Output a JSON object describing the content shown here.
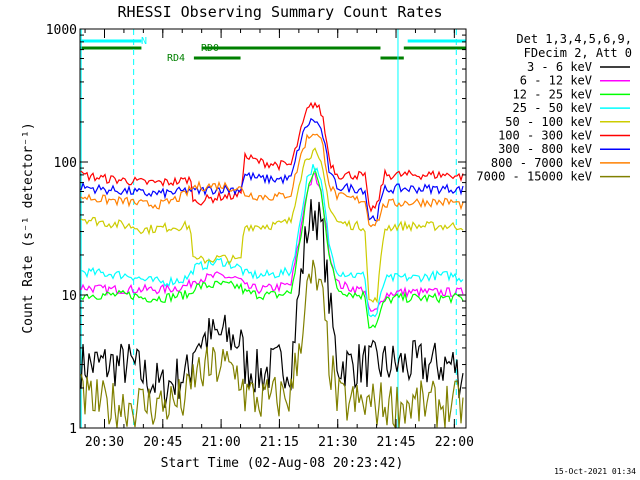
{
  "chart_data": {
    "type": "line",
    "title": "RHESSI Observing Summary Count Rates",
    "xlabel": "Start Time (02-Aug-08 20:23:42)",
    "ylabel": "Count Rate (s⁻¹ detector⁻¹)",
    "ylog": true,
    "ylim": [
      1,
      1000
    ],
    "xlim": [
      "20:23:42",
      "22:03:00"
    ],
    "x_ticks": [
      "20:30",
      "20:45",
      "21:00",
      "21:15",
      "21:30",
      "21:45",
      "22:00"
    ],
    "y_ticks": [
      "1",
      "10",
      "100",
      "1000"
    ],
    "legend_header": [
      "Det 1,3,4,5,6,9,",
      "FDecim 2, Att 0"
    ],
    "legend_position": "right",
    "footer": "15-Oct-2021 01:34",
    "flags": [
      {
        "label": "N",
        "color": "#00ffff",
        "intervals": [
          [
            "20:23:42",
            "20:39:30"
          ],
          [
            "21:48:00",
            "22:03:00"
          ]
        ]
      },
      {
        "label": "RD0",
        "color": "#008000",
        "intervals": [
          [
            "20:23:42",
            "20:39:30"
          ],
          [
            "20:55:00",
            "21:41:00"
          ],
          [
            "21:47:00",
            "22:03:00"
          ]
        ]
      },
      {
        "label": "RD4",
        "color": "#008000",
        "intervals": [
          [
            "20:53:00",
            "21:05:00"
          ],
          [
            "21:41:00",
            "21:47:00"
          ]
        ]
      }
    ],
    "vlines": [
      {
        "time": "20:24:00",
        "color": "#00ffff",
        "style": "solid"
      },
      {
        "time": "20:37:30",
        "color": "#00ffff",
        "style": "dashed"
      },
      {
        "time": "21:45:30",
        "color": "#00ffff",
        "style": "solid"
      },
      {
        "time": "22:00:30",
        "color": "#00ffff",
        "style": "dashed"
      }
    ],
    "x": [
      "20:24",
      "20:30",
      "20:37",
      "20:40",
      "20:45",
      "20:50",
      "20:52",
      "20:53",
      "21:00",
      "21:05",
      "21:06",
      "21:10",
      "21:15",
      "21:18",
      "21:20",
      "21:22",
      "21:24",
      "21:26",
      "21:28",
      "21:30",
      "21:35",
      "21:37",
      "21:38",
      "21:40",
      "21:42",
      "21:45",
      "21:50",
      "21:55",
      "22:00",
      "22:01"
    ],
    "series": [
      {
        "name": "3 - 6 keV",
        "color": "#000000",
        "values": [
          3,
          3,
          3,
          2.5,
          2,
          2.5,
          2.5,
          4.5,
          5,
          4.5,
          3,
          2.5,
          3,
          3,
          10,
          30,
          45,
          30,
          8,
          3,
          3,
          3,
          3,
          3,
          3,
          3,
          3,
          3,
          3,
          2.5
        ]
      },
      {
        "name": "6 - 12 keV",
        "color": "#ff00ff",
        "values": [
          11.5,
          11,
          11,
          11,
          11,
          11.5,
          12,
          13,
          14,
          13,
          11.5,
          11,
          11.5,
          12,
          25,
          60,
          80,
          55,
          20,
          12,
          11,
          11,
          7.5,
          7.5,
          10,
          10.5,
          10.5,
          10.5,
          10.5,
          10.5
        ]
      },
      {
        "name": "12 - 25 keV",
        "color": "#00ff00",
        "values": [
          10,
          10,
          10,
          9.5,
          9.5,
          10,
          10,
          11.5,
          12,
          11.5,
          10.5,
          10,
          10,
          10.5,
          22,
          55,
          90,
          55,
          18,
          11,
          10,
          10,
          6,
          6,
          9,
          9.5,
          9.5,
          9.5,
          9.5,
          9.5
        ]
      },
      {
        "name": "25 - 50 keV",
        "color": "#00ffff",
        "values": [
          15,
          14.5,
          14,
          13,
          12.5,
          13,
          14,
          16,
          18,
          16,
          14.5,
          14,
          14.5,
          15,
          30,
          75,
          95,
          65,
          22,
          15,
          14,
          14,
          7,
          7,
          13,
          13.5,
          13.5,
          14,
          14,
          13.5
        ]
      },
      {
        "name": "50 - 100 keV",
        "color": "#cccc00",
        "values": [
          38,
          35,
          33,
          31,
          32,
          33,
          33,
          18,
          19,
          18,
          33,
          33,
          34,
          36,
          70,
          110,
          120,
          90,
          45,
          35,
          33,
          33,
          9,
          9,
          32,
          33,
          33,
          33,
          33,
          33
        ]
      },
      {
        "name": "100 - 300 keV",
        "color": "#ff0000",
        "values": [
          80,
          75,
          72,
          70,
          70,
          72,
          75,
          50,
          55,
          56,
          110,
          100,
          95,
          95,
          150,
          240,
          280,
          230,
          100,
          80,
          80,
          78,
          45,
          45,
          80,
          80,
          80,
          80,
          80,
          78
        ]
      },
      {
        "name": "300 - 800 keV",
        "color": "#0000ff",
        "values": [
          65,
          62,
          60,
          58,
          58,
          60,
          62,
          60,
          63,
          62,
          80,
          75,
          74,
          75,
          130,
          190,
          210,
          170,
          80,
          65,
          63,
          62,
          38,
          38,
          62,
          63,
          63,
          63,
          63,
          62
        ]
      },
      {
        "name": "800 - 7000 keV",
        "color": "#ff8000",
        "values": [
          55,
          52,
          50,
          48,
          48,
          55,
          62,
          65,
          67,
          63,
          58,
          55,
          55,
          58,
          100,
          150,
          170,
          140,
          65,
          55,
          52,
          52,
          35,
          35,
          48,
          49,
          50,
          50,
          50,
          48
        ]
      },
      {
        "name": "7000 - 15000 keV",
        "color": "#808000",
        "values": [
          1.7,
          1.5,
          1.5,
          1.5,
          1.5,
          1.6,
          1.8,
          2.5,
          3,
          2.5,
          1.8,
          1.6,
          1.7,
          1.8,
          4,
          10,
          14,
          9,
          3,
          1.6,
          1.5,
          1.5,
          1.5,
          1.5,
          1.5,
          1.5,
          1.5,
          1.5,
          1.5,
          1.5
        ]
      }
    ]
  }
}
